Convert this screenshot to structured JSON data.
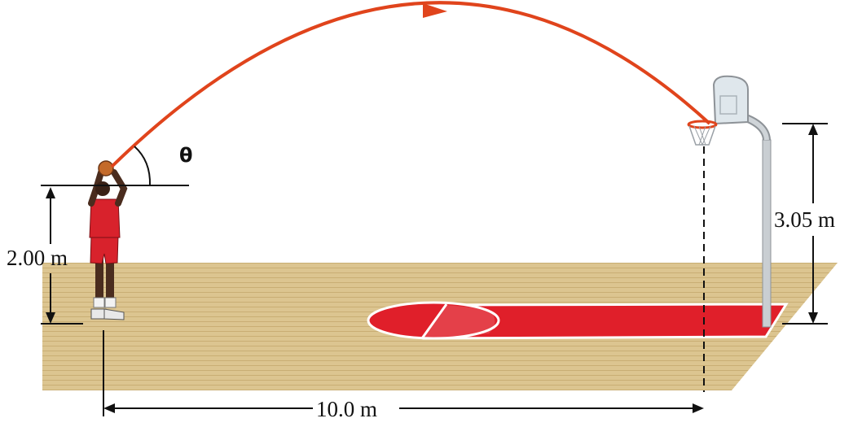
{
  "labels": {
    "angle": "θ",
    "shooter_height": "2.00 m",
    "hoop_height": "3.05 m",
    "distance": "10.0 m"
  },
  "colors": {
    "trajectory": "#e0441c",
    "court_wood": "#dcc590",
    "court_paint": "#e01f2a",
    "jersey": "#d8222c"
  }
}
